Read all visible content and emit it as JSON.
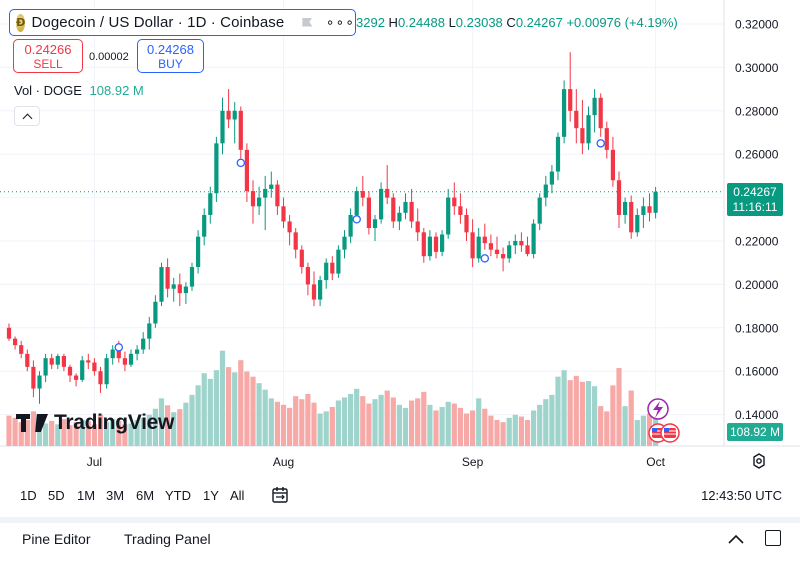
{
  "header": {
    "symbol_title": "Dogecoin / US Dollar · 1D · Coinbase",
    "ohlc": {
      "open_fragment": "3292",
      "high_label": "H",
      "high": "0.24488",
      "low_label": "L",
      "low": "0.23038",
      "close_label": "C",
      "close": "0.24267",
      "change": "+0.00976 (+4.19%)"
    },
    "sell": {
      "price": "0.24266",
      "label": "SELL"
    },
    "buy": {
      "price": "0.24268",
      "label": "BUY"
    },
    "spread": "0.00002",
    "volume_legend": {
      "label": "Vol · DOGE",
      "value": "108.92 M"
    }
  },
  "watermark": {
    "text": "TradingView"
  },
  "price_tag": {
    "price": "0.24267",
    "countdown": "11:16:11"
  },
  "volume_tag": "108.92 M",
  "period_buttons": [
    "1D",
    "5D",
    "1M",
    "3M",
    "6M",
    "YTD",
    "1Y",
    "All"
  ],
  "clock": "12:43:50 UTC",
  "bottom_tabs": {
    "pine_editor": "Pine Editor",
    "trading_panel": "Trading Panel"
  },
  "colors": {
    "up": "#089981",
    "down": "#f23645",
    "vol_up": "#9ed4cb",
    "vol_down": "#f7a9a7",
    "accent": "#2962ff"
  },
  "chart_data": {
    "type": "candlestick",
    "ylim": [
      0.13,
      0.325
    ],
    "y_ticks": [
      0.14,
      0.16,
      0.18,
      0.2,
      0.22,
      0.24,
      0.26,
      0.28,
      0.3,
      0.32
    ],
    "y_tick_labels": [
      "0.14000",
      "0.16000",
      "0.18000",
      "0.20000",
      "0.22000",
      "0.24000",
      "0.26000",
      "0.28000",
      "0.30000",
      "0.32000"
    ],
    "x_ticks": [
      {
        "label": "Jul",
        "index": 14
      },
      {
        "label": "Aug",
        "index": 45
      },
      {
        "label": "Sep",
        "index": 76
      },
      {
        "label": "Oct",
        "index": 106
      }
    ],
    "last_price_line": 0.24267,
    "volume_max_M": 300,
    "events": [
      {
        "index": 18,
        "price": 0.171
      },
      {
        "index": 38,
        "price": 0.256
      },
      {
        "index": 57,
        "price": 0.23
      },
      {
        "index": 78,
        "price": 0.212
      },
      {
        "index": 97,
        "price": 0.265
      }
    ],
    "candles": [
      [
        0.18,
        0.182,
        0.174,
        0.175
      ],
      [
        0.175,
        0.176,
        0.17,
        0.172
      ],
      [
        0.172,
        0.174,
        0.166,
        0.168
      ],
      [
        0.168,
        0.17,
        0.16,
        0.162
      ],
      [
        0.162,
        0.165,
        0.148,
        0.152
      ],
      [
        0.152,
        0.16,
        0.145,
        0.158
      ],
      [
        0.158,
        0.168,
        0.155,
        0.166
      ],
      [
        0.166,
        0.168,
        0.161,
        0.163
      ],
      [
        0.163,
        0.168,
        0.161,
        0.167
      ],
      [
        0.167,
        0.168,
        0.16,
        0.162
      ],
      [
        0.162,
        0.163,
        0.155,
        0.158
      ],
      [
        0.158,
        0.159,
        0.153,
        0.156
      ],
      [
        0.156,
        0.167,
        0.155,
        0.165
      ],
      [
        0.165,
        0.168,
        0.161,
        0.164
      ],
      [
        0.164,
        0.166,
        0.158,
        0.16
      ],
      [
        0.16,
        0.162,
        0.15,
        0.154
      ],
      [
        0.154,
        0.168,
        0.152,
        0.166
      ],
      [
        0.166,
        0.172,
        0.163,
        0.17
      ],
      [
        0.17,
        0.174,
        0.164,
        0.166
      ],
      [
        0.166,
        0.169,
        0.16,
        0.163
      ],
      [
        0.163,
        0.17,
        0.162,
        0.168
      ],
      [
        0.168,
        0.172,
        0.165,
        0.17
      ],
      [
        0.17,
        0.178,
        0.168,
        0.175
      ],
      [
        0.175,
        0.185,
        0.17,
        0.182
      ],
      [
        0.182,
        0.195,
        0.18,
        0.192
      ],
      [
        0.192,
        0.21,
        0.19,
        0.208
      ],
      [
        0.208,
        0.212,
        0.194,
        0.198
      ],
      [
        0.198,
        0.203,
        0.192,
        0.2
      ],
      [
        0.2,
        0.205,
        0.19,
        0.196
      ],
      [
        0.196,
        0.201,
        0.191,
        0.199
      ],
      [
        0.199,
        0.21,
        0.197,
        0.208
      ],
      [
        0.208,
        0.225,
        0.205,
        0.222
      ],
      [
        0.222,
        0.235,
        0.218,
        0.232
      ],
      [
        0.232,
        0.245,
        0.228,
        0.242
      ],
      [
        0.242,
        0.268,
        0.238,
        0.265
      ],
      [
        0.265,
        0.286,
        0.26,
        0.28
      ],
      [
        0.28,
        0.29,
        0.272,
        0.276
      ],
      [
        0.276,
        0.284,
        0.265,
        0.28
      ],
      [
        0.28,
        0.282,
        0.258,
        0.262
      ],
      [
        0.262,
        0.265,
        0.238,
        0.243
      ],
      [
        0.243,
        0.248,
        0.228,
        0.236
      ],
      [
        0.236,
        0.245,
        0.232,
        0.24
      ],
      [
        0.24,
        0.25,
        0.225,
        0.244
      ],
      [
        0.244,
        0.252,
        0.24,
        0.246
      ],
      [
        0.246,
        0.248,
        0.232,
        0.236
      ],
      [
        0.236,
        0.24,
        0.226,
        0.229
      ],
      [
        0.229,
        0.232,
        0.218,
        0.224
      ],
      [
        0.224,
        0.226,
        0.212,
        0.216
      ],
      [
        0.216,
        0.218,
        0.205,
        0.208
      ],
      [
        0.208,
        0.21,
        0.195,
        0.2
      ],
      [
        0.2,
        0.206,
        0.19,
        0.193
      ],
      [
        0.193,
        0.204,
        0.19,
        0.202
      ],
      [
        0.202,
        0.212,
        0.198,
        0.21
      ],
      [
        0.21,
        0.213,
        0.202,
        0.205
      ],
      [
        0.205,
        0.218,
        0.203,
        0.216
      ],
      [
        0.216,
        0.225,
        0.212,
        0.222
      ],
      [
        0.222,
        0.235,
        0.219,
        0.232
      ],
      [
        0.232,
        0.245,
        0.23,
        0.243
      ],
      [
        0.243,
        0.25,
        0.236,
        0.24
      ],
      [
        0.24,
        0.243,
        0.223,
        0.226
      ],
      [
        0.226,
        0.232,
        0.22,
        0.23
      ],
      [
        0.23,
        0.247,
        0.228,
        0.244
      ],
      [
        0.244,
        0.255,
        0.237,
        0.24
      ],
      [
        0.24,
        0.242,
        0.226,
        0.229
      ],
      [
        0.229,
        0.236,
        0.225,
        0.233
      ],
      [
        0.233,
        0.242,
        0.23,
        0.238
      ],
      [
        0.238,
        0.244,
        0.226,
        0.229
      ],
      [
        0.229,
        0.235,
        0.22,
        0.224
      ],
      [
        0.224,
        0.226,
        0.21,
        0.213
      ],
      [
        0.213,
        0.225,
        0.211,
        0.222
      ],
      [
        0.222,
        0.224,
        0.212,
        0.215
      ],
      [
        0.215,
        0.225,
        0.213,
        0.223
      ],
      [
        0.223,
        0.244,
        0.221,
        0.24
      ],
      [
        0.24,
        0.247,
        0.232,
        0.236
      ],
      [
        0.236,
        0.242,
        0.228,
        0.232
      ],
      [
        0.232,
        0.235,
        0.22,
        0.224
      ],
      [
        0.224,
        0.23,
        0.208,
        0.212
      ],
      [
        0.212,
        0.226,
        0.21,
        0.222
      ],
      [
        0.222,
        0.228,
        0.216,
        0.219
      ],
      [
        0.219,
        0.223,
        0.213,
        0.216
      ],
      [
        0.216,
        0.222,
        0.212,
        0.214
      ],
      [
        0.214,
        0.217,
        0.206,
        0.212
      ],
      [
        0.212,
        0.22,
        0.21,
        0.218
      ],
      [
        0.218,
        0.223,
        0.214,
        0.22
      ],
      [
        0.22,
        0.224,
        0.215,
        0.218
      ],
      [
        0.218,
        0.222,
        0.213,
        0.214
      ],
      [
        0.214,
        0.23,
        0.212,
        0.228
      ],
      [
        0.228,
        0.242,
        0.225,
        0.24
      ],
      [
        0.24,
        0.25,
        0.236,
        0.246
      ],
      [
        0.246,
        0.255,
        0.242,
        0.252
      ],
      [
        0.252,
        0.27,
        0.248,
        0.268
      ],
      [
        0.268,
        0.294,
        0.265,
        0.29
      ],
      [
        0.29,
        0.307,
        0.275,
        0.28
      ],
      [
        0.28,
        0.29,
        0.265,
        0.272
      ],
      [
        0.272,
        0.285,
        0.26,
        0.265
      ],
      [
        0.265,
        0.282,
        0.262,
        0.278
      ],
      [
        0.278,
        0.29,
        0.27,
        0.286
      ],
      [
        0.286,
        0.288,
        0.268,
        0.272
      ],
      [
        0.272,
        0.275,
        0.258,
        0.262
      ],
      [
        0.262,
        0.268,
        0.245,
        0.248
      ],
      [
        0.248,
        0.252,
        0.226,
        0.232
      ],
      [
        0.232,
        0.24,
        0.228,
        0.238
      ],
      [
        0.238,
        0.241,
        0.221,
        0.224
      ],
      [
        0.224,
        0.235,
        0.222,
        0.232
      ],
      [
        0.232,
        0.24,
        0.226,
        0.236
      ],
      [
        0.236,
        0.242,
        0.229,
        0.233
      ],
      [
        0.233,
        0.2449,
        0.2304,
        0.2427
      ]
    ],
    "volumes_M": [
      70,
      65,
      55,
      60,
      80,
      68,
      52,
      58,
      50,
      62,
      48,
      55,
      60,
      58,
      50,
      72,
      55,
      62,
      58,
      50,
      52,
      60,
      65,
      72,
      86,
      110,
      94,
      78,
      85,
      100,
      118,
      140,
      168,
      155,
      175,
      220,
      182,
      170,
      198,
      172,
      160,
      145,
      130,
      110,
      102,
      95,
      88,
      115,
      108,
      120,
      100,
      75,
      80,
      90,
      105,
      112,
      120,
      132,
      115,
      98,
      108,
      118,
      128,
      112,
      95,
      88,
      105,
      110,
      125,
      95,
      82,
      90,
      102,
      98,
      88,
      75,
      82,
      110,
      86,
      70,
      60,
      55,
      65,
      72,
      68,
      60,
      82,
      95,
      108,
      118,
      160,
      175,
      152,
      162,
      148,
      150,
      138,
      92,
      80,
      140,
      180,
      92,
      128,
      60,
      70,
      75,
      108
    ]
  }
}
